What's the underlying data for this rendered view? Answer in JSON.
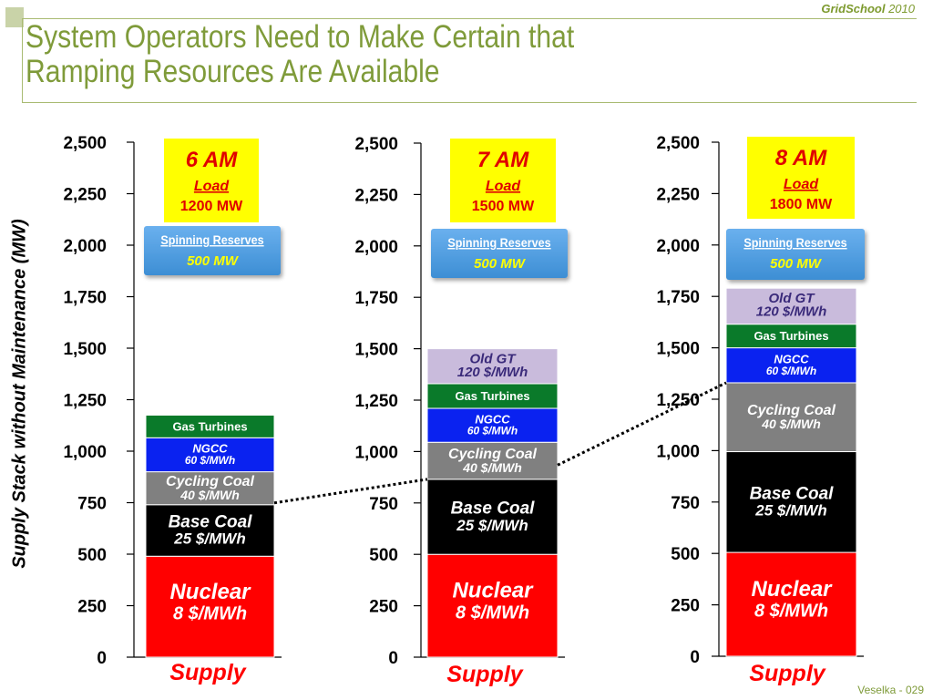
{
  "header": {
    "brand_name": "GridSchool",
    "brand_year": "2010",
    "title_line1": "System Operators Need to Make Certain that",
    "title_line2": "Ramping Resources Are Available"
  },
  "footer": {
    "text": "Veselka  - 029"
  },
  "colors": {
    "nuclear": "#ff0000",
    "base_coal": "#000000",
    "cycling_coal": "#808080",
    "ngcc": "#0a22f0",
    "gas_turbines": "#0a7a2a",
    "old_gt": "#c9bbdc",
    "load_box": "#ffff00",
    "spinning_reserves": "#3d8ed4",
    "connector": "#000000"
  },
  "chart_data": {
    "type": "bar",
    "ylabel": "Supply Stack without Maintenance (MW)",
    "ylim": [
      0,
      2500
    ],
    "yticks": [
      "0",
      "250",
      "500",
      "750",
      "1,000",
      "1,250",
      "1,500",
      "1,750",
      "2,000",
      "2,250",
      "2,500"
    ],
    "category_label": "Supply",
    "panels": [
      {
        "hour": "6 AM",
        "load_label": "Load",
        "load_value": "1200 MW",
        "reserve_label": "Spinning Reserves",
        "reserve_value": "500 MW",
        "segments": [
          {
            "key": "nuclear",
            "label": "Nuclear",
            "price": "8 $/MWh",
            "bottom": 0,
            "top": 490
          },
          {
            "key": "base_coal",
            "label": "Base Coal",
            "price": "25 $/MWh",
            "bottom": 490,
            "top": 740
          },
          {
            "key": "cycling_coal",
            "label": "Cycling Coal",
            "price": "40 $/MWh",
            "bottom": 740,
            "top": 900
          },
          {
            "key": "ngcc",
            "label": "NGCC",
            "price": "60 $/MWh",
            "bottom": 900,
            "top": 1065
          },
          {
            "key": "gas_turbines",
            "label": "Gas Turbines",
            "price": "",
            "bottom": 1065,
            "top": 1175
          }
        ]
      },
      {
        "hour": "7 AM",
        "load_label": "Load",
        "load_value": "1500 MW",
        "reserve_label": "Spinning Reserves",
        "reserve_value": "500 MW",
        "segments": [
          {
            "key": "nuclear",
            "label": "Nuclear",
            "price": "8 $/MWh",
            "bottom": 0,
            "top": 500
          },
          {
            "key": "base_coal",
            "label": "Base Coal",
            "price": "25 $/MWh",
            "bottom": 500,
            "top": 865
          },
          {
            "key": "cycling_coal",
            "label": "Cycling Coal",
            "price": "40 $/MWh",
            "bottom": 865,
            "top": 1045
          },
          {
            "key": "ngcc",
            "label": "NGCC",
            "price": "60 $/MWh",
            "bottom": 1045,
            "top": 1210
          },
          {
            "key": "gas_turbines",
            "label": "Gas Turbines",
            "price": "",
            "bottom": 1210,
            "top": 1330
          },
          {
            "key": "old_gt",
            "label": "Old GT",
            "price": "120 $/MWh",
            "bottom": 1330,
            "top": 1500
          }
        ]
      },
      {
        "hour": "8 AM",
        "load_label": "Load",
        "load_value": "1800 MW",
        "reserve_label": "Spinning Reserves",
        "reserve_value": "500 MW",
        "segments": [
          {
            "key": "nuclear",
            "label": "Nuclear",
            "price": "8 $/MWh",
            "bottom": 0,
            "top": 505
          },
          {
            "key": "base_coal",
            "label": "Base Coal",
            "price": "25 $/MWh",
            "bottom": 505,
            "top": 995
          },
          {
            "key": "cycling_coal",
            "label": "Cycling Coal",
            "price": "40 $/MWh",
            "bottom": 995,
            "top": 1330
          },
          {
            "key": "ngcc",
            "label": "NGCC",
            "price": "60 $/MWh",
            "bottom": 1330,
            "top": 1500
          },
          {
            "key": "gas_turbines",
            "label": "Gas Turbines",
            "price": "",
            "bottom": 1500,
            "top": 1615
          },
          {
            "key": "old_gt",
            "label": "Old GT",
            "price": "120 $/MWh",
            "bottom": 1615,
            "top": 1790
          }
        ]
      }
    ]
  }
}
